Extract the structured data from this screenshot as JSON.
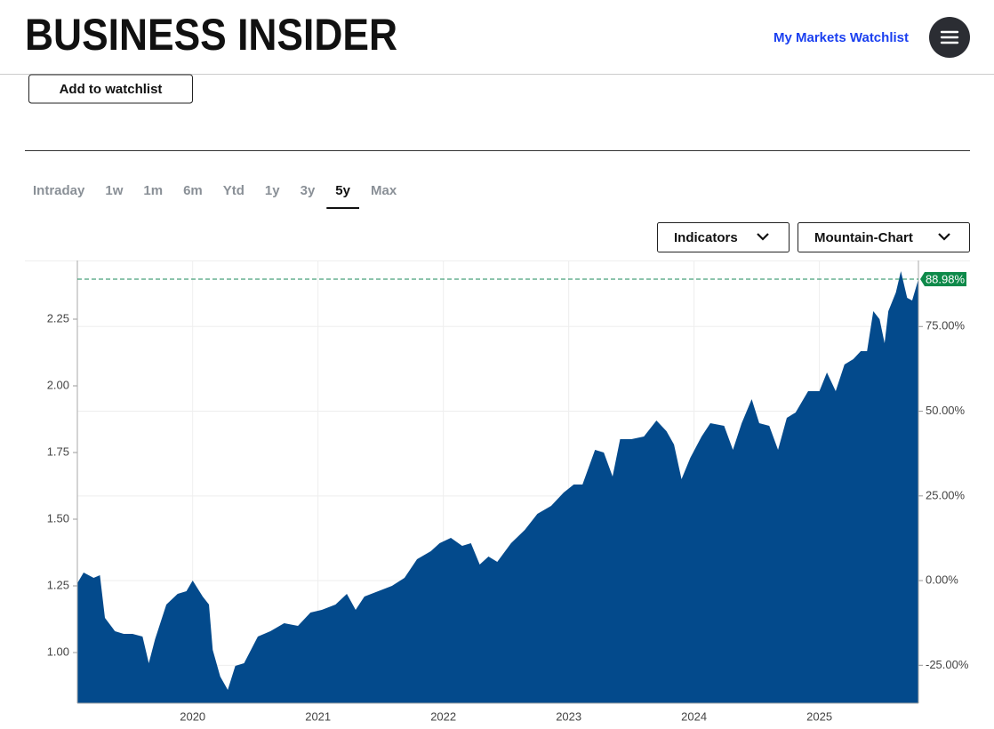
{
  "header": {
    "logo": "BUSINESS INSIDER",
    "watchlist_link": "My Markets Watchlist"
  },
  "add_button": "Add to watchlist",
  "tabs": {
    "items": [
      "Intraday",
      "1w",
      "1m",
      "6m",
      "Ytd",
      "1y",
      "3y",
      "5y",
      "Max"
    ],
    "active": 7
  },
  "controls": [
    "Indicators",
    "Mountain-Chart"
  ],
  "chart_data": {
    "type": "area",
    "color": "#034a8c",
    "x": [
      2019.08,
      2019.13,
      2019.21,
      2019.26,
      2019.3,
      2019.38,
      2019.45,
      2019.52,
      2019.6,
      2019.65,
      2019.7,
      2019.79,
      2019.88,
      2019.95,
      2020.0,
      2020.08,
      2020.13,
      2020.16,
      2020.22,
      2020.28,
      2020.34,
      2020.41,
      2020.52,
      2020.62,
      2020.73,
      2020.84,
      2020.94,
      2021.03,
      2021.14,
      2021.23,
      2021.3,
      2021.37,
      2021.48,
      2021.59,
      2021.69,
      2021.79,
      2021.9,
      2021.97,
      2022.06,
      2022.15,
      2022.22,
      2022.29,
      2022.36,
      2022.43,
      2022.54,
      2022.65,
      2022.75,
      2022.86,
      2022.96,
      2023.04,
      2023.11,
      2023.21,
      2023.28,
      2023.35,
      2023.41,
      2023.5,
      2023.6,
      2023.7,
      2023.78,
      2023.84,
      2023.9,
      2023.97,
      2024.06,
      2024.13,
      2024.24,
      2024.31,
      2024.38,
      2024.46,
      2024.52,
      2024.6,
      2024.67,
      2024.74,
      2024.81,
      2024.91,
      2025.0,
      2025.06,
      2025.13,
      2025.2,
      2025.27,
      2025.33,
      2025.38,
      2025.43,
      2025.48,
      2025.52,
      2025.55,
      2025.61,
      2025.65,
      2025.7,
      2025.74,
      2025.79
    ],
    "values": [
      1.26,
      1.3,
      1.28,
      1.29,
      1.13,
      1.08,
      1.07,
      1.07,
      1.06,
      0.96,
      1.05,
      1.18,
      1.22,
      1.23,
      1.27,
      1.21,
      1.18,
      1.01,
      0.91,
      0.86,
      0.95,
      0.96,
      1.06,
      1.08,
      1.11,
      1.1,
      1.15,
      1.16,
      1.18,
      1.22,
      1.16,
      1.21,
      1.23,
      1.25,
      1.28,
      1.35,
      1.38,
      1.41,
      1.43,
      1.4,
      1.41,
      1.33,
      1.36,
      1.34,
      1.41,
      1.46,
      1.52,
      1.55,
      1.6,
      1.63,
      1.63,
      1.76,
      1.75,
      1.66,
      1.8,
      1.8,
      1.81,
      1.87,
      1.83,
      1.78,
      1.65,
      1.73,
      1.81,
      1.86,
      1.85,
      1.76,
      1.86,
      1.95,
      1.86,
      1.85,
      1.76,
      1.88,
      1.9,
      1.98,
      1.98,
      2.05,
      1.98,
      2.08,
      2.1,
      2.13,
      2.13,
      2.28,
      2.25,
      2.16,
      2.28,
      2.35,
      2.43,
      2.33,
      2.32,
      2.4
    ],
    "xlim": [
      2019.08,
      2025.79
    ],
    "xticks": [
      2020,
      2021,
      2022,
      2023,
      2024,
      2025
    ],
    "ylim": [
      0.81,
      2.47
    ],
    "yticks": [
      {
        "value": 1,
        "label": "1.00"
      },
      1.25,
      {
        "value": 1.5,
        "label": "1.50"
      },
      1.75,
      {
        "value": 2,
        "label": "2.00"
      },
      2.25
    ],
    "y2lim": [
      -36.2,
      94.5
    ],
    "y2ticks": [
      {
        "value": -25,
        "label": "-25.00%"
      },
      {
        "value": 0,
        "label": "0.00%"
      },
      {
        "value": 25,
        "label": "25.00%"
      },
      {
        "value": 50,
        "label": "50.00%"
      },
      {
        "value": 75,
        "label": "75.00%"
      }
    ],
    "last_label": {
      "value": 88.98,
      "label": "88.98%"
    },
    "grid": true
  }
}
